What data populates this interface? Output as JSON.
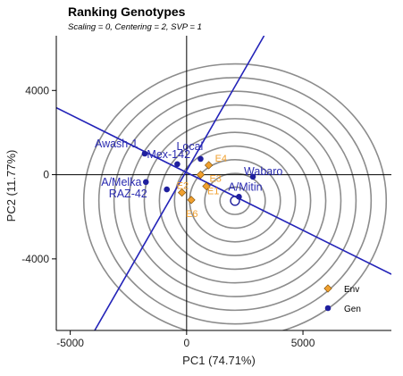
{
  "chart_data": {
    "type": "scatter",
    "title": "Ranking Genotypes",
    "subtitle": "Scaling = 0, Centering = 2, SVP = 1",
    "xlabel": "PC1 (74.71%)",
    "ylabel": "PC2 (11.77%)",
    "xlim": [
      -5600,
      8800
    ],
    "ylim": [
      -7400,
      6600
    ],
    "xticks": [
      -5000,
      0,
      5000
    ],
    "yticks": [
      4000,
      0,
      -4000
    ],
    "xtick_labels": [
      "-5000",
      "0",
      "5000"
    ],
    "ytick_labels": [
      "4000",
      "0",
      "-4000"
    ],
    "grid": false,
    "legend_position": "bottom-right",
    "legend": [
      {
        "name": "Env",
        "marker": "diamond",
        "color": "#f0a030"
      },
      {
        "name": "Gen",
        "marker": "circle",
        "color": "#1f1f9e"
      }
    ],
    "series": [
      {
        "name": "Gen",
        "color": "#1f1f9e",
        "points": [
          {
            "label": "Awash-1",
            "x": -1800,
            "y": 1000
          },
          {
            "label": "Local",
            "x": 600,
            "y": 750
          },
          {
            "label": "Mex-142",
            "x": -400,
            "y": 500
          },
          {
            "label": "Wabaro",
            "x": 2850,
            "y": -100
          },
          {
            "label": "A/Melka",
            "x": -1750,
            "y": -350
          },
          {
            "label": "A/Mitin",
            "x": 2250,
            "y": -1050
          },
          {
            "label": "RAZ-42",
            "x": -850,
            "y": -700
          }
        ]
      },
      {
        "name": "Env",
        "color": "#f0a030",
        "points": [
          {
            "label": "E4",
            "x": 950,
            "y": 450
          },
          {
            "label": "E3",
            "x": 600,
            "y": 0
          },
          {
            "label": "E1",
            "x": 850,
            "y": -550
          },
          {
            "label": "E2",
            "x": -200,
            "y": -850
          },
          {
            "label": "E6",
            "x": 200,
            "y": -1200
          }
        ]
      }
    ],
    "ideal_point": {
      "x": 2080,
      "y": -1240
    },
    "concentric_circles": {
      "count": 10,
      "center_x": 2080,
      "center_y": -1240,
      "spacing": 650
    },
    "lines": [
      {
        "name": "average environment axis",
        "x1": -5600,
        "y1": 3180,
        "x2": 8800,
        "y2": -4730
      },
      {
        "name": "perpendicular line",
        "x1": -3950,
        "y1": -7400,
        "x2": 3330,
        "y2": 6600
      }
    ]
  }
}
